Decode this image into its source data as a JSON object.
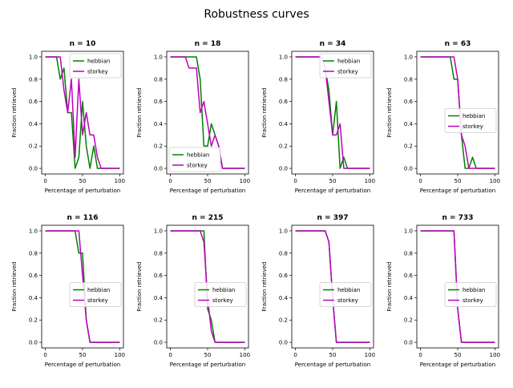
{
  "suptitle": "Robustness curves",
  "colors": {
    "hebbian": "#008000",
    "storkey": "#bf00bf"
  },
  "chart_data": [
    {
      "type": "line",
      "title": "n = 10",
      "xlabel": "Percentage of perturbation",
      "ylabel": "Fraction retrieved",
      "xlim": [
        -5,
        105
      ],
      "ylim": [
        -0.05,
        1.05
      ],
      "xticks": [
        0,
        50,
        100
      ],
      "yticks": [
        0.0,
        0.2,
        0.4,
        0.6,
        0.8,
        1.0
      ],
      "legend": "top-right",
      "x": [
        0,
        5,
        10,
        15,
        20,
        25,
        30,
        35,
        40,
        45,
        50,
        55,
        60,
        65,
        70,
        75,
        80,
        85,
        90,
        95,
        100
      ],
      "series": [
        {
          "name": "hebbian",
          "values": [
            1.0,
            1.0,
            1.0,
            1.0,
            0.8,
            0.9,
            0.5,
            0.5,
            0.0,
            0.1,
            0.6,
            0.2,
            0.0,
            0.2,
            0.0,
            0.0,
            0.0,
            0.0,
            0.0,
            0.0,
            0.0
          ]
        },
        {
          "name": "storkey",
          "values": [
            1.0,
            1.0,
            1.0,
            1.0,
            1.0,
            0.7,
            0.5,
            0.8,
            0.1,
            0.8,
            0.3,
            0.5,
            0.3,
            0.3,
            0.1,
            0.0,
            0.0,
            0.0,
            0.0,
            0.0,
            0.0
          ]
        }
      ]
    },
    {
      "type": "line",
      "title": "n = 18",
      "xlabel": "Percentage of perturbation",
      "ylabel": "Fraction retrieved",
      "xlim": [
        -5,
        105
      ],
      "ylim": [
        -0.05,
        1.05
      ],
      "xticks": [
        0,
        50,
        100
      ],
      "yticks": [
        0.0,
        0.2,
        0.4,
        0.6,
        0.8,
        1.0
      ],
      "legend": "lower-left",
      "x": [
        0,
        5,
        10,
        15,
        20,
        25,
        30,
        35,
        40,
        45,
        50,
        55,
        60,
        65,
        70,
        75,
        80,
        85,
        90,
        95,
        100
      ],
      "series": [
        {
          "name": "hebbian",
          "values": [
            1.0,
            1.0,
            1.0,
            1.0,
            1.0,
            1.0,
            1.0,
            1.0,
            0.8,
            0.2,
            0.2,
            0.4,
            0.3,
            0.2,
            0.0,
            0.0,
            0.0,
            0.0,
            0.0,
            0.0,
            0.0
          ]
        },
        {
          "name": "storkey",
          "values": [
            1.0,
            1.0,
            1.0,
            1.0,
            1.0,
            0.9,
            0.9,
            0.9,
            0.5,
            0.6,
            0.4,
            0.2,
            0.3,
            0.2,
            0.0,
            0.0,
            0.0,
            0.0,
            0.0,
            0.0,
            0.0
          ]
        }
      ]
    },
    {
      "type": "line",
      "title": "n = 34",
      "xlabel": "Percentage of perturbation",
      "ylabel": "Fraction retrieved",
      "xlim": [
        -5,
        105
      ],
      "ylim": [
        -0.05,
        1.05
      ],
      "xticks": [
        0,
        50,
        100
      ],
      "yticks": [
        0.0,
        0.2,
        0.4,
        0.6,
        0.8,
        1.0
      ],
      "legend": "top-right",
      "x": [
        0,
        5,
        10,
        15,
        20,
        25,
        30,
        35,
        40,
        45,
        50,
        55,
        60,
        65,
        70,
        75,
        80,
        85,
        90,
        95,
        100
      ],
      "series": [
        {
          "name": "hebbian",
          "values": [
            1.0,
            1.0,
            1.0,
            1.0,
            1.0,
            1.0,
            1.0,
            1.0,
            0.9,
            0.7,
            0.3,
            0.6,
            0.0,
            0.1,
            0.0,
            0.0,
            0.0,
            0.0,
            0.0,
            0.0,
            0.0
          ]
        },
        {
          "name": "storkey",
          "values": [
            1.0,
            1.0,
            1.0,
            1.0,
            1.0,
            1.0,
            1.0,
            1.0,
            0.9,
            0.6,
            0.3,
            0.3,
            0.4,
            0.0,
            0.0,
            0.0,
            0.0,
            0.0,
            0.0,
            0.0,
            0.0
          ]
        }
      ]
    },
    {
      "type": "line",
      "title": "n = 63",
      "xlabel": "Percentage of perturbation",
      "ylabel": "Fraction retrieved",
      "xlim": [
        -5,
        105
      ],
      "ylim": [
        -0.05,
        1.05
      ],
      "xticks": [
        0,
        50,
        100
      ],
      "yticks": [
        0.0,
        0.2,
        0.4,
        0.6,
        0.8,
        1.0
      ],
      "legend": "center-right",
      "x": [
        0,
        5,
        10,
        15,
        20,
        25,
        30,
        35,
        40,
        45,
        50,
        55,
        60,
        65,
        70,
        75,
        80,
        85,
        90,
        95,
        100
      ],
      "series": [
        {
          "name": "hebbian",
          "values": [
            1.0,
            1.0,
            1.0,
            1.0,
            1.0,
            1.0,
            1.0,
            1.0,
            1.0,
            0.8,
            0.8,
            0.3,
            0.0,
            0.0,
            0.1,
            0.0,
            0.0,
            0.0,
            0.0,
            0.0,
            0.0
          ]
        },
        {
          "name": "storkey",
          "values": [
            1.0,
            1.0,
            1.0,
            1.0,
            1.0,
            1.0,
            1.0,
            1.0,
            1.0,
            1.0,
            0.8,
            0.3,
            0.2,
            0.0,
            0.0,
            0.0,
            0.0,
            0.0,
            0.0,
            0.0,
            0.0
          ]
        }
      ]
    },
    {
      "type": "line",
      "title": "n = 116",
      "xlabel": "Percentage of perturbation",
      "ylabel": "Fraction retrieved",
      "xlim": [
        -5,
        105
      ],
      "ylim": [
        -0.05,
        1.05
      ],
      "xticks": [
        0,
        50,
        100
      ],
      "yticks": [
        0.0,
        0.2,
        0.4,
        0.6,
        0.8,
        1.0
      ],
      "legend": "center-right",
      "x": [
        0,
        5,
        10,
        15,
        20,
        25,
        30,
        35,
        40,
        45,
        50,
        55,
        60,
        65,
        70,
        75,
        80,
        85,
        90,
        95,
        100
      ],
      "series": [
        {
          "name": "hebbian",
          "values": [
            1.0,
            1.0,
            1.0,
            1.0,
            1.0,
            1.0,
            1.0,
            1.0,
            1.0,
            0.8,
            0.8,
            0.2,
            0.0,
            0.0,
            0.0,
            0.0,
            0.0,
            0.0,
            0.0,
            0.0,
            0.0
          ]
        },
        {
          "name": "storkey",
          "values": [
            1.0,
            1.0,
            1.0,
            1.0,
            1.0,
            1.0,
            1.0,
            1.0,
            1.0,
            1.0,
            0.6,
            0.2,
            0.0,
            0.0,
            0.0,
            0.0,
            0.0,
            0.0,
            0.0,
            0.0,
            0.0
          ]
        }
      ]
    },
    {
      "type": "line",
      "title": "n = 215",
      "xlabel": "Percentage of perturbation",
      "ylabel": "Fraction retrieved",
      "xlim": [
        -5,
        105
      ],
      "ylim": [
        -0.05,
        1.05
      ],
      "xticks": [
        0,
        50,
        100
      ],
      "yticks": [
        0.0,
        0.2,
        0.4,
        0.6,
        0.8,
        1.0
      ],
      "legend": "center-right",
      "x": [
        0,
        5,
        10,
        15,
        20,
        25,
        30,
        35,
        40,
        45,
        50,
        55,
        60,
        65,
        70,
        75,
        80,
        85,
        90,
        95,
        100
      ],
      "series": [
        {
          "name": "hebbian",
          "values": [
            1.0,
            1.0,
            1.0,
            1.0,
            1.0,
            1.0,
            1.0,
            1.0,
            1.0,
            1.0,
            0.3,
            0.2,
            0.0,
            0.0,
            0.0,
            0.0,
            0.0,
            0.0,
            0.0,
            0.0,
            0.0
          ]
        },
        {
          "name": "storkey",
          "values": [
            1.0,
            1.0,
            1.0,
            1.0,
            1.0,
            1.0,
            1.0,
            1.0,
            1.0,
            0.9,
            0.4,
            0.1,
            0.0,
            0.0,
            0.0,
            0.0,
            0.0,
            0.0,
            0.0,
            0.0,
            0.0
          ]
        }
      ]
    },
    {
      "type": "line",
      "title": "n = 397",
      "xlabel": "Percentage of perturbation",
      "ylabel": "Fraction retrieved",
      "xlim": [
        -5,
        105
      ],
      "ylim": [
        -0.05,
        1.05
      ],
      "xticks": [
        0,
        50,
        100
      ],
      "yticks": [
        0.0,
        0.2,
        0.4,
        0.6,
        0.8,
        1.0
      ],
      "legend": "center-right",
      "x": [
        0,
        5,
        10,
        15,
        20,
        25,
        30,
        35,
        40,
        45,
        50,
        55,
        60,
        65,
        70,
        75,
        80,
        85,
        90,
        95,
        100
      ],
      "series": [
        {
          "name": "hebbian",
          "values": [
            1.0,
            1.0,
            1.0,
            1.0,
            1.0,
            1.0,
            1.0,
            1.0,
            1.0,
            0.9,
            0.4,
            0.0,
            0.0,
            0.0,
            0.0,
            0.0,
            0.0,
            0.0,
            0.0,
            0.0,
            0.0
          ]
        },
        {
          "name": "storkey",
          "values": [
            1.0,
            1.0,
            1.0,
            1.0,
            1.0,
            1.0,
            1.0,
            1.0,
            1.0,
            0.9,
            0.4,
            0.0,
            0.0,
            0.0,
            0.0,
            0.0,
            0.0,
            0.0,
            0.0,
            0.0,
            0.0
          ]
        }
      ]
    },
    {
      "type": "line",
      "title": "n = 733",
      "xlabel": "Percentage of perturbation",
      "ylabel": "Fraction retrieved",
      "xlim": [
        -5,
        105
      ],
      "ylim": [
        -0.05,
        1.05
      ],
      "xticks": [
        0,
        50,
        100
      ],
      "yticks": [
        0.0,
        0.2,
        0.4,
        0.6,
        0.8,
        1.0
      ],
      "legend": "center-right",
      "x": [
        0,
        5,
        10,
        15,
        20,
        25,
        30,
        35,
        40,
        45,
        50,
        55,
        60,
        65,
        70,
        75,
        80,
        85,
        90,
        95,
        100
      ],
      "series": [
        {
          "name": "hebbian",
          "values": [
            1.0,
            1.0,
            1.0,
            1.0,
            1.0,
            1.0,
            1.0,
            1.0,
            1.0,
            1.0,
            0.3,
            0.0,
            0.0,
            0.0,
            0.0,
            0.0,
            0.0,
            0.0,
            0.0,
            0.0,
            0.0
          ]
        },
        {
          "name": "storkey",
          "values": [
            1.0,
            1.0,
            1.0,
            1.0,
            1.0,
            1.0,
            1.0,
            1.0,
            1.0,
            1.0,
            0.3,
            0.0,
            0.0,
            0.0,
            0.0,
            0.0,
            0.0,
            0.0,
            0.0,
            0.0,
            0.0
          ]
        }
      ]
    }
  ]
}
